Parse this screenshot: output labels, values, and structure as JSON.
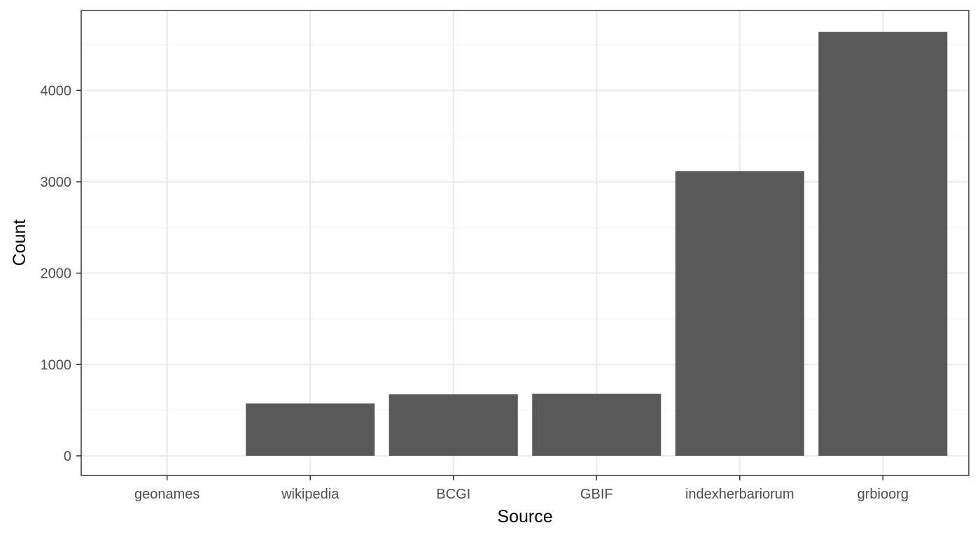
{
  "chart_data": {
    "type": "bar",
    "categories": [
      "geonames",
      "wikipedia",
      "BCGI",
      "GBIF",
      "indexherbariorum",
      "grbioorg"
    ],
    "values": [
      0,
      573,
      673,
      680,
      3116,
      4640
    ],
    "xlabel": "Source",
    "ylabel": "Count",
    "ylim": [
      -215,
      4875
    ],
    "yticks": [
      0,
      1000,
      2000,
      3000,
      4000
    ],
    "ytick_labels": [
      "0",
      "1000",
      "2000",
      "3000",
      "4000"
    ],
    "grid": true,
    "legend": "none",
    "colors": {
      "bar": "#595959",
      "grid_major": "#ebebeb",
      "grid_minor": "#f3f3f3",
      "panel_border": "#333333",
      "tick_label": "#4d4d4d"
    }
  }
}
